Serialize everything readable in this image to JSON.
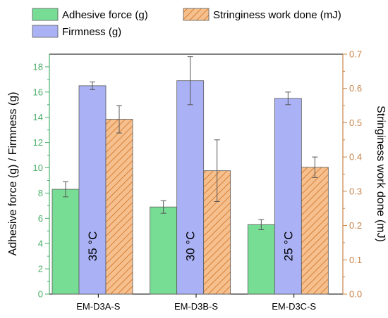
{
  "chart_data": {
    "type": "bar",
    "categories": [
      "EM-D3A-S",
      "EM-D3B-S",
      "EM-D3C-S"
    ],
    "annotations": [
      "35 °C",
      "30 °C",
      "25 °C"
    ],
    "ylabel_left": "Adhesive force (g) / Firmness (g)",
    "ylabel_right": "Stringiness work done (mJ)",
    "ylim_left": [
      0,
      19
    ],
    "ylim_right": [
      0,
      0.7
    ],
    "yticks_left": [
      "0",
      "2",
      "4",
      "6",
      "8",
      "10",
      "12",
      "14",
      "16",
      "18"
    ],
    "yticks_right": [
      "0.0",
      "0.1",
      "0.2",
      "0.3",
      "0.4",
      "0.5",
      "0.6",
      "0.7"
    ],
    "legend_position": "top",
    "series": [
      {
        "name": "Adhesive force (g)",
        "axis": "left",
        "values": [
          8.3,
          6.9,
          5.5
        ],
        "errors": [
          0.6,
          0.5,
          0.4
        ],
        "color": "#77dd95",
        "stroke": "#5a5a5a"
      },
      {
        "name": "Firmness (g)",
        "axis": "left",
        "values": [
          16.5,
          16.9,
          15.5
        ],
        "errors": [
          0.3,
          1.9,
          0.5
        ],
        "color": "#aab2f5",
        "stroke": "#5a5a5a"
      },
      {
        "name": "Stringiness work done (mJ)",
        "axis": "right",
        "values": [
          0.51,
          0.36,
          0.37
        ],
        "errors": [
          0.04,
          0.09,
          0.03
        ],
        "color": "#f6c08e",
        "hatch": "#d06f22",
        "stroke": "#5a5a5a"
      }
    ],
    "axis_colors": {
      "left": "#4caf6a",
      "right": "#c8844a"
    }
  }
}
